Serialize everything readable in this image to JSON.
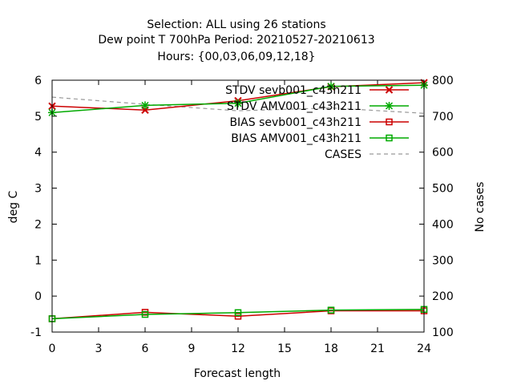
{
  "chart_data": {
    "type": "line",
    "title_lines": [
      "Selection: ALL using    26 stations",
      "Dew point T 700hPa   Period: 20210527-20210613",
      "Hours: {00,03,06,09,12,18}"
    ],
    "xlabel": "Forecast length",
    "ylabel": "deg C",
    "y2label": "No cases",
    "xlim": [
      0,
      24
    ],
    "ylim": [
      -1,
      6
    ],
    "y2lim": [
      100,
      800
    ],
    "x_ticks": [
      0,
      3,
      6,
      9,
      12,
      15,
      18,
      21,
      24
    ],
    "y_ticks": [
      -1,
      0,
      1,
      2,
      3,
      4,
      5,
      6
    ],
    "y_tick_labels": [
      "-1",
      "0",
      "1",
      "2",
      "3",
      "4",
      "5",
      "6"
    ],
    "y2_ticks": [
      100,
      200,
      300,
      400,
      500,
      600,
      700,
      800
    ],
    "y2_tick_labels": [
      "100",
      "200",
      "300",
      "400",
      "500",
      "600",
      "700",
      "800"
    ],
    "legend_position": "top-right",
    "series": [
      {
        "name": "STDV sevb001_c43h211",
        "color": "#cc0000",
        "marker": "x-cross",
        "axis": "y1",
        "x": [
          0,
          6,
          12,
          18,
          24
        ],
        "values": [
          5.28,
          5.17,
          5.43,
          5.82,
          5.93
        ]
      },
      {
        "name": "STDV AMV001_c43h211",
        "color": "#00aa00",
        "marker": "star",
        "axis": "y1",
        "x": [
          0,
          6,
          12,
          18,
          24
        ],
        "values": [
          5.1,
          5.3,
          5.36,
          5.83,
          5.86
        ]
      },
      {
        "name": "BIAS sevb001_c43h211",
        "color": "#cc0000",
        "marker": "square",
        "axis": "y1",
        "x": [
          0,
          6,
          12,
          18,
          24
        ],
        "values": [
          -0.63,
          -0.45,
          -0.56,
          -0.41,
          -0.41
        ]
      },
      {
        "name": "BIAS AMV001_c43h211",
        "color": "#00aa00",
        "marker": "square",
        "axis": "y1",
        "x": [
          0,
          6,
          12,
          18,
          24
        ],
        "values": [
          -0.63,
          -0.51,
          -0.46,
          -0.39,
          -0.37
        ]
      },
      {
        "name": "CASES",
        "color": "#999999",
        "marker": "none",
        "dashed": true,
        "axis": "y2",
        "x": [
          0,
          6,
          12,
          18,
          24
        ],
        "values": [
          753,
          733,
          715,
          723,
          708
        ]
      }
    ]
  }
}
